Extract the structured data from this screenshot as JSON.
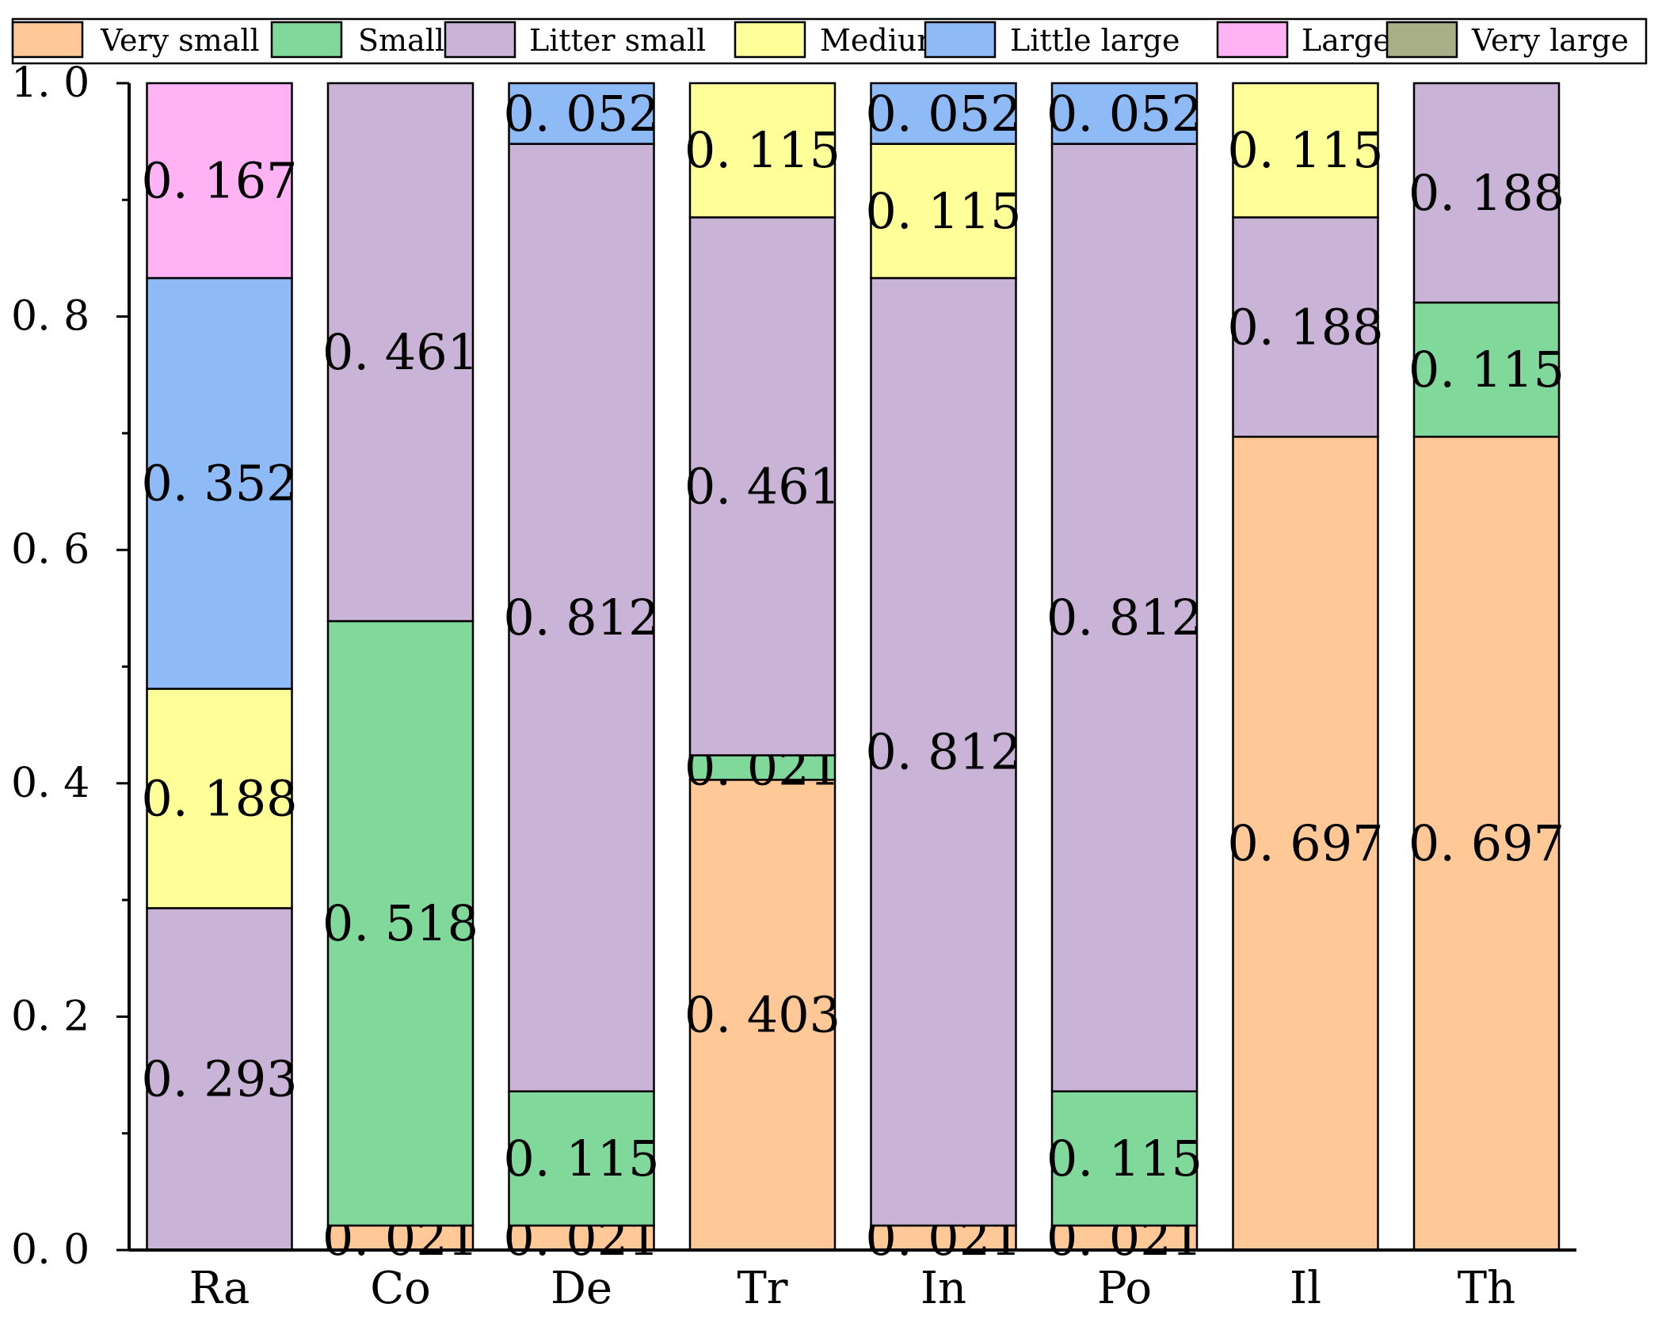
{
  "chart_data": {
    "type": "stacked-bar",
    "title": "",
    "xlabel": "",
    "ylabel": "",
    "ylim": [
      0,
      1.0
    ],
    "yticks": [
      0.0,
      0.2,
      0.4,
      0.6,
      0.8,
      1.0
    ],
    "ytick_labels": [
      "0.0",
      "0.2",
      "0.4",
      "0.6",
      "0.8",
      "1.0"
    ],
    "legend_position": "top",
    "categories": [
      "Ra",
      "Co",
      "De",
      "Tr",
      "In",
      "Po",
      "Il",
      "Th"
    ],
    "series": [
      {
        "name": "Very small",
        "color": "#FFC896",
        "values": [
          0.0,
          0.021,
          0.021,
          0.403,
          0.021,
          0.021,
          0.697,
          0.697
        ]
      },
      {
        "name": "Small",
        "color": "#80D89A",
        "values": [
          0.0,
          0.518,
          0.115,
          0.021,
          0.0,
          0.115,
          0.0,
          0.115
        ]
      },
      {
        "name": "Litter small",
        "color": "#C9B3D6",
        "values": [
          0.293,
          0.461,
          0.812,
          0.461,
          0.812,
          0.812,
          0.188,
          0.188
        ]
      },
      {
        "name": "Medium",
        "color": "#FFFF99",
        "values": [
          0.188,
          0.0,
          0.0,
          0.115,
          0.115,
          0.0,
          0.115,
          0.0
        ]
      },
      {
        "name": "Little large",
        "color": "#8EBBF5",
        "values": [
          0.352,
          0.0,
          0.052,
          0.0,
          0.052,
          0.052,
          0.0,
          0.0
        ]
      },
      {
        "name": "Large",
        "color": "#FFB3F5",
        "values": [
          0.167,
          0.0,
          0.0,
          0.0,
          0.0,
          0.0,
          0.0,
          0.0
        ]
      },
      {
        "name": "Very large",
        "color": "#A8AE86",
        "values": [
          0.0,
          0.0,
          0.0,
          0.0,
          0.0,
          0.0,
          0.0,
          0.0
        ]
      }
    ]
  }
}
